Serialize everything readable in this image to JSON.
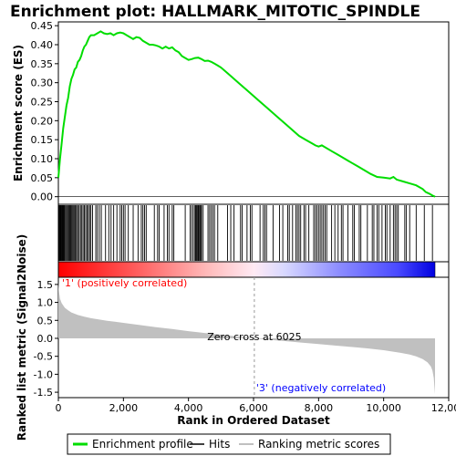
{
  "chart_data": {
    "type": "line",
    "title": "Enrichment plot: HALLMARK_MITOTIC_SPINDLE",
    "xlabel": "Rank in Ordered Dataset",
    "xlim": [
      0,
      12000
    ],
    "x_ticks": [
      0,
      2000,
      4000,
      6000,
      8000,
      10000,
      12000
    ],
    "x_tick_labels": [
      "0",
      "2,000",
      "4,000",
      "6,000",
      "8,000",
      "10,000",
      "12,000"
    ],
    "n_ranks": 11580,
    "enrichment_profile": {
      "ylabel": "Enrichment score (ES)",
      "ylim": [
        -0.02,
        0.46
      ],
      "y_ticks": [
        0.0,
        0.05,
        0.1,
        0.15,
        0.2,
        0.25,
        0.3,
        0.35,
        0.4,
        0.45
      ],
      "y_tick_labels": [
        "0.00",
        "0.05",
        "0.10",
        "0.15",
        "0.20",
        "0.25",
        "0.30",
        "0.35",
        "0.40",
        "0.45"
      ],
      "color": "#00dd00",
      "x": [
        0,
        50,
        100,
        150,
        200,
        250,
        300,
        350,
        400,
        450,
        500,
        550,
        600,
        650,
        700,
        750,
        800,
        850,
        900,
        950,
        1000,
        1100,
        1200,
        1300,
        1400,
        1500,
        1600,
        1700,
        1800,
        1900,
        2000,
        2100,
        2200,
        2300,
        2400,
        2500,
        2600,
        2700,
        2800,
        2900,
        3000,
        3100,
        3200,
        3300,
        3400,
        3500,
        3600,
        3700,
        3800,
        3900,
        4000,
        4100,
        4200,
        4300,
        4400,
        4500,
        4600,
        4700,
        4800,
        4900,
        5000,
        5200,
        5400,
        5600,
        5800,
        6000,
        6200,
        6400,
        6600,
        6800,
        7000,
        7200,
        7400,
        7600,
        7800,
        7900,
        8000,
        8100,
        8200,
        8400,
        8600,
        8800,
        9000,
        9200,
        9400,
        9600,
        9800,
        10000,
        10200,
        10300,
        10400,
        10600,
        10800,
        11000,
        11200,
        11300,
        11400,
        11500,
        11580
      ],
      "y": [
        0.05,
        0.1,
        0.14,
        0.18,
        0.21,
        0.24,
        0.26,
        0.29,
        0.31,
        0.32,
        0.335,
        0.34,
        0.355,
        0.36,
        0.37,
        0.385,
        0.395,
        0.4,
        0.41,
        0.42,
        0.425,
        0.425,
        0.43,
        0.435,
        0.43,
        0.428,
        0.43,
        0.425,
        0.43,
        0.432,
        0.43,
        0.425,
        0.42,
        0.415,
        0.42,
        0.418,
        0.41,
        0.405,
        0.4,
        0.4,
        0.398,
        0.395,
        0.39,
        0.395,
        0.39,
        0.393,
        0.385,
        0.38,
        0.37,
        0.365,
        0.36,
        0.362,
        0.365,
        0.366,
        0.362,
        0.357,
        0.358,
        0.355,
        0.35,
        0.345,
        0.34,
        0.325,
        0.31,
        0.295,
        0.28,
        0.265,
        0.25,
        0.235,
        0.22,
        0.205,
        0.19,
        0.175,
        0.16,
        0.15,
        0.14,
        0.135,
        0.132,
        0.135,
        0.13,
        0.12,
        0.11,
        0.1,
        0.09,
        0.08,
        0.07,
        0.06,
        0.052,
        0.05,
        0.048,
        0.052,
        0.045,
        0.04,
        0.035,
        0.03,
        0.02,
        0.012,
        0.008,
        0.003,
        0.0
      ]
    },
    "hits": [
      20,
      40,
      60,
      80,
      100,
      120,
      140,
      160,
      180,
      200,
      230,
      260,
      290,
      320,
      350,
      380,
      410,
      440,
      470,
      500,
      530,
      560,
      600,
      640,
      680,
      720,
      760,
      800,
      840,
      880,
      920,
      960,
      1000,
      1050,
      1150,
      1200,
      1260,
      1320,
      1450,
      1550,
      1620,
      1700,
      1800,
      1900,
      1950,
      2000,
      2050,
      2150,
      2300,
      2450,
      2550,
      2600,
      2650,
      2700,
      2950,
      3050,
      3100,
      3250,
      3350,
      3400,
      3500,
      3550,
      3900,
      4050,
      4100,
      4150,
      4200,
      4220,
      4250,
      4280,
      4300,
      4320,
      4350,
      4380,
      4400,
      4450,
      4600,
      4650,
      4700,
      4750,
      4800,
      4900,
      5200,
      5300,
      5400,
      5600,
      5650,
      5800,
      5900,
      5950,
      6200,
      6300,
      6350,
      6400,
      6600,
      6800,
      6900,
      7050,
      7100,
      7200,
      7300,
      7350,
      7400,
      7450,
      7550,
      7600,
      7700,
      7850,
      7900,
      7950,
      8000,
      8050,
      8100,
      8150,
      8200,
      8250,
      8400,
      8500,
      8600,
      8700,
      8750,
      8900,
      9050,
      9100,
      9250,
      9300,
      9500,
      9650,
      9700,
      9800,
      9850,
      9950,
      10050,
      10100,
      10200,
      10300,
      10350,
      10400,
      10450,
      10650,
      10700,
      10800,
      11000,
      11250,
      11500
    ],
    "ranked_metric": {
      "ylabel": "Ranked list metric (Signal2Noise)",
      "ylim": [
        -1.65,
        1.7
      ],
      "y_ticks": [
        -1.5,
        -1.0,
        -0.5,
        0.0,
        0.5,
        1.0,
        1.5
      ],
      "y_tick_labels": [
        "-1.5",
        "-1.0",
        "-0.5",
        "0.0",
        "0.5",
        "1.0",
        "1.5"
      ],
      "x": [
        0,
        20,
        50,
        100,
        200,
        300,
        400,
        600,
        800,
        1000,
        1500,
        2000,
        2500,
        3000,
        3500,
        4000,
        4500,
        5000,
        5500,
        6025,
        6500,
        7000,
        7500,
        8000,
        8500,
        9000,
        9500,
        10000,
        10500,
        10800,
        11000,
        11200,
        11350,
        11450,
        11500,
        11540,
        11580
      ],
      "y": [
        1.55,
        1.3,
        1.1,
        0.98,
        0.85,
        0.78,
        0.72,
        0.65,
        0.6,
        0.56,
        0.49,
        0.43,
        0.37,
        0.31,
        0.26,
        0.2,
        0.15,
        0.1,
        0.05,
        0.0,
        -0.04,
        -0.08,
        -0.12,
        -0.16,
        -0.2,
        -0.24,
        -0.28,
        -0.33,
        -0.4,
        -0.45,
        -0.5,
        -0.58,
        -0.67,
        -0.78,
        -0.9,
        -1.1,
        -1.55
      ],
      "fill_color": "#c0c0c0"
    },
    "zero_cross": {
      "rank": 6025,
      "label": "Zero cross at 6025"
    },
    "positive_label": "'1' (positively correlated)",
    "positive_color": "#ff0000",
    "negative_label": "'3' (negatively correlated)",
    "negative_color": "#0000ff",
    "legend": {
      "items": [
        {
          "label": "Enrichment profile",
          "color": "#00dd00"
        },
        {
          "label": "Hits",
          "color": "#000000"
        },
        {
          "label": "Ranking metric scores",
          "color": "#c0c0c0"
        }
      ]
    }
  }
}
